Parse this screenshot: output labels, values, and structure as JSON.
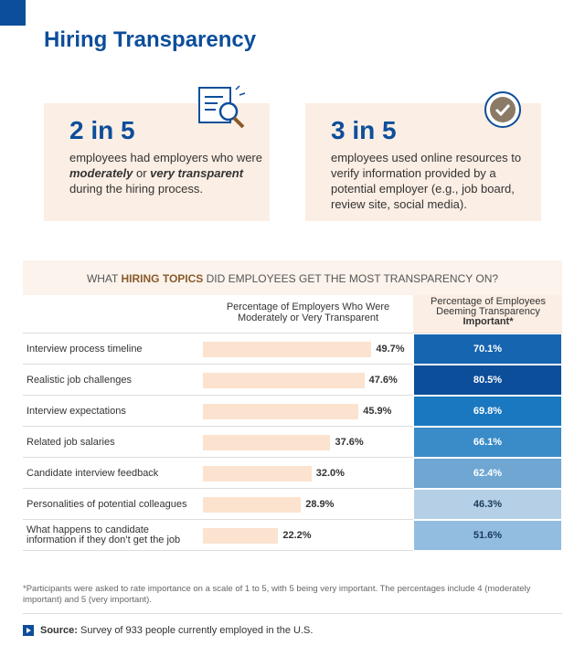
{
  "header": {
    "title": "Hiring Transparency"
  },
  "stats": [
    {
      "headline": "2 in 5",
      "text": [
        {
          "text": "employees had employers who were "
        },
        {
          "text": "moderately",
          "bold_italic": true
        },
        {
          "text": " or "
        },
        {
          "text": "very transparent",
          "bold_italic": true
        },
        {
          "text": " during the hiring process."
        }
      ]
    },
    {
      "headline": "3 in 5",
      "text": [
        {
          "text": "employees used online resources to verify information provided by a potential employer (e.g., job board, review site, social media)."
        }
      ]
    }
  ],
  "chart_data": {
    "type": "bar",
    "title": [
      {
        "text": "WHAT "
      },
      {
        "text": "HIRING TOPICS",
        "bold": true
      },
      {
        "text": " DID EMPLOYEES GET THE MOST TRANSPARENCY ON?"
      }
    ],
    "categories": [
      "Interview process timeline",
      "Realistic job challenges",
      "Interview expectations",
      "Related job salaries",
      "Candidate interview feedback",
      "Personalities of potential colleagues",
      "What happens to candidate information if they don’t get the job"
    ],
    "xlim": [
      0,
      62
    ],
    "series": [
      {
        "name": [
          {
            "text": "Percentage of Employers Who Were Moderately or Very Transparent"
          }
        ],
        "color": "#fbe3cf",
        "values": [
          49.7,
          47.6,
          45.9,
          37.6,
          32.0,
          28.9,
          22.2
        ],
        "value_labels": [
          "49.7%",
          "47.6%",
          "45.9%",
          "37.6%",
          "32.0%",
          "28.9%",
          "22.2%"
        ]
      },
      {
        "name": [
          {
            "text": "Percentage of Employees Deeming Transparency "
          },
          {
            "text": "Important*",
            "bold": true
          }
        ],
        "colors": [
          "#1565b0",
          "#0d4e9a",
          "#1a78c0",
          "#3a8cc8",
          "#6fa6d2",
          "#b5d0e6",
          "#93bde0"
        ],
        "values": [
          70.1,
          80.5,
          69.8,
          66.1,
          62.4,
          46.3,
          51.6
        ],
        "value_labels": [
          "70.1%",
          "80.5%",
          "69.8%",
          "66.1%",
          "62.4%",
          "46.3%",
          "51.6%"
        ]
      }
    ]
  },
  "footnote": "*Participants were asked to rate importance on a scale of 1 to 5, with 5 being very important. The percentages include 4 (moderately important) and 5 (very important).",
  "source": {
    "label": "Source:",
    "text": " Survey of 933 people currently employed in the U.S."
  }
}
